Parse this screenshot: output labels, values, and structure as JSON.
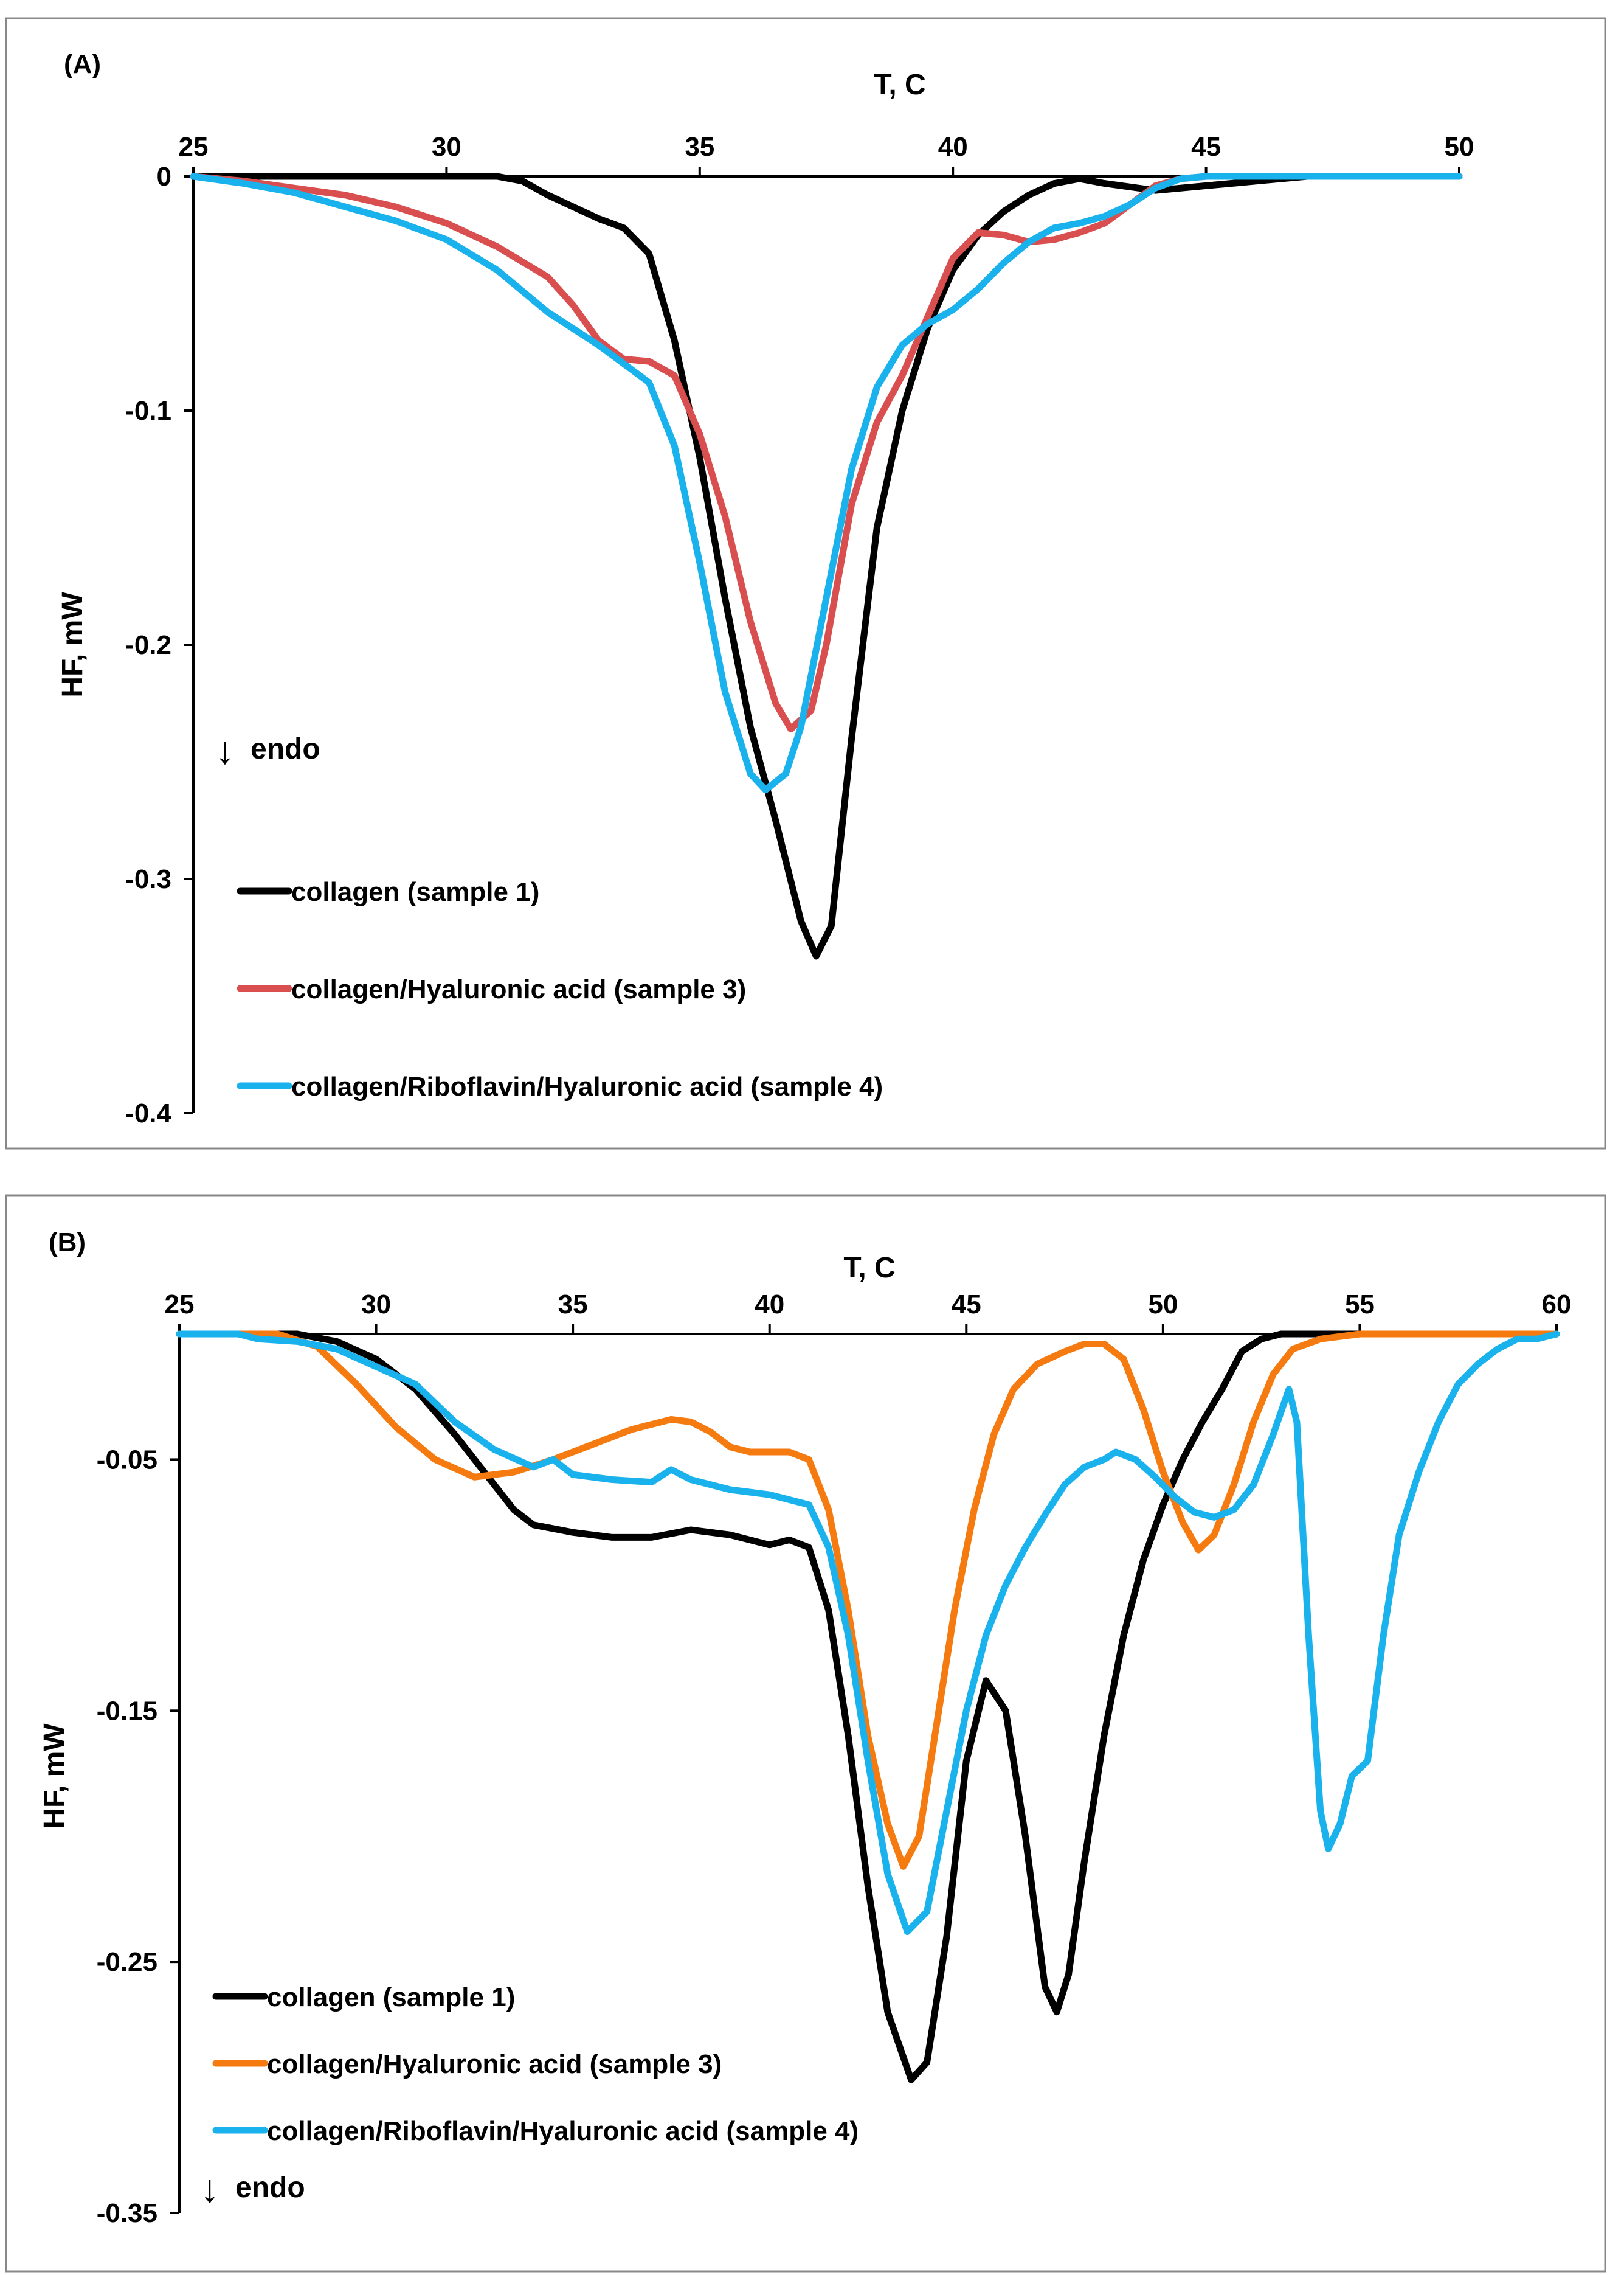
{
  "chart_data": [
    {
      "type": "line",
      "panel_label": "(A)",
      "xlabel": "T, C",
      "ylabel": "HF, mW",
      "xlim": [
        25,
        50
      ],
      "ylim": [
        -0.4,
        0
      ],
      "xticks": [
        25,
        30,
        35,
        40,
        45,
        50
      ],
      "xtick_labels": [
        "25",
        "30",
        "35",
        "40",
        "45",
        "50"
      ],
      "yticks": [
        0,
        -0.1,
        -0.2,
        -0.3,
        -0.4
      ],
      "ytick_labels": [
        "0",
        "-0.1",
        "-0.2",
        "-0.3",
        "-0.4"
      ],
      "x_axis_position": "top",
      "annotation": "endo",
      "annotation_arrow": "↓",
      "legend_position": "bottom-left",
      "series": [
        {
          "name": "collagen (sample 1)",
          "color": "#000000",
          "points": [
            [
              25,
              0
            ],
            [
              30,
              0
            ],
            [
              31,
              0
            ],
            [
              31.5,
              -0.002
            ],
            [
              32,
              -0.008
            ],
            [
              33,
              -0.018
            ],
            [
              33.5,
              -0.022
            ],
            [
              34,
              -0.033
            ],
            [
              34.5,
              -0.07
            ],
            [
              35,
              -0.12
            ],
            [
              35.5,
              -0.18
            ],
            [
              36,
              -0.235
            ],
            [
              36.5,
              -0.275
            ],
            [
              37,
              -0.318
            ],
            [
              37.3,
              -0.333
            ],
            [
              37.6,
              -0.32
            ],
            [
              38,
              -0.24
            ],
            [
              38.5,
              -0.15
            ],
            [
              39,
              -0.1
            ],
            [
              39.5,
              -0.065
            ],
            [
              40,
              -0.04
            ],
            [
              40.5,
              -0.025
            ],
            [
              41,
              -0.015
            ],
            [
              41.5,
              -0.008
            ],
            [
              42,
              -0.003
            ],
            [
              42.5,
              -0.001
            ],
            [
              43,
              -0.003
            ],
            [
              44,
              -0.006
            ],
            [
              45,
              -0.004
            ],
            [
              46,
              -0.002
            ],
            [
              47,
              0
            ],
            [
              50,
              0
            ]
          ]
        },
        {
          "name": "collagen/Hyaluronic acid (sample 3)",
          "color": "#d94f4f",
          "points": [
            [
              25,
              0
            ],
            [
              26,
              -0.002
            ],
            [
              27,
              -0.005
            ],
            [
              28,
              -0.008
            ],
            [
              29,
              -0.013
            ],
            [
              30,
              -0.02
            ],
            [
              31,
              -0.03
            ],
            [
              32,
              -0.043
            ],
            [
              32.5,
              -0.055
            ],
            [
              33,
              -0.07
            ],
            [
              33.5,
              -0.078
            ],
            [
              34,
              -0.079
            ],
            [
              34.5,
              -0.085
            ],
            [
              35,
              -0.11
            ],
            [
              35.5,
              -0.145
            ],
            [
              36,
              -0.19
            ],
            [
              36.5,
              -0.225
            ],
            [
              36.8,
              -0.236
            ],
            [
              37.2,
              -0.228
            ],
            [
              37.5,
              -0.2
            ],
            [
              38,
              -0.14
            ],
            [
              38.5,
              -0.105
            ],
            [
              39,
              -0.085
            ],
            [
              39.5,
              -0.06
            ],
            [
              40,
              -0.035
            ],
            [
              40.5,
              -0.024
            ],
            [
              41,
              -0.025
            ],
            [
              41.5,
              -0.028
            ],
            [
              42,
              -0.027
            ],
            [
              42.5,
              -0.024
            ],
            [
              43,
              -0.02
            ],
            [
              43.5,
              -0.012
            ],
            [
              44,
              -0.004
            ],
            [
              44.5,
              -0.001
            ],
            [
              45,
              0
            ],
            [
              50,
              0
            ]
          ]
        },
        {
          "name": "collagen/Riboflavin/Hyaluronic acid (sample 4)",
          "color": "#1ab2ec",
          "points": [
            [
              25,
              0
            ],
            [
              26,
              -0.003
            ],
            [
              27,
              -0.007
            ],
            [
              28,
              -0.013
            ],
            [
              29,
              -0.019
            ],
            [
              30,
              -0.027
            ],
            [
              31,
              -0.04
            ],
            [
              32,
              -0.058
            ],
            [
              33,
              -0.072
            ],
            [
              34,
              -0.088
            ],
            [
              34.5,
              -0.115
            ],
            [
              35,
              -0.165
            ],
            [
              35.5,
              -0.22
            ],
            [
              36,
              -0.255
            ],
            [
              36.3,
              -0.262
            ],
            [
              36.7,
              -0.255
            ],
            [
              37,
              -0.235
            ],
            [
              37.5,
              -0.18
            ],
            [
              38,
              -0.125
            ],
            [
              38.5,
              -0.09
            ],
            [
              39,
              -0.072
            ],
            [
              39.5,
              -0.063
            ],
            [
              40,
              -0.057
            ],
            [
              40.5,
              -0.048
            ],
            [
              41,
              -0.037
            ],
            [
              41.5,
              -0.028
            ],
            [
              42,
              -0.022
            ],
            [
              42.5,
              -0.02
            ],
            [
              43,
              -0.017
            ],
            [
              43.5,
              -0.012
            ],
            [
              44,
              -0.005
            ],
            [
              44.5,
              -0.001
            ],
            [
              45,
              0
            ],
            [
              50,
              0
            ]
          ]
        }
      ]
    },
    {
      "type": "line",
      "panel_label": "(B)",
      "xlabel": "T, C",
      "ylabel": "HF, mW",
      "xlim": [
        25,
        60
      ],
      "ylim": [
        -0.35,
        0
      ],
      "xticks": [
        25,
        30,
        35,
        40,
        45,
        50,
        55,
        60
      ],
      "xtick_labels": [
        "25",
        "30",
        "35",
        "40",
        "45",
        "50",
        "55",
        "60"
      ],
      "yticks": [
        -0.05,
        -0.15,
        -0.25,
        -0.35
      ],
      "ytick_labels": [
        "-0.05",
        "-0.15",
        "-0.25",
        "-0.35"
      ],
      "x_axis_position": "top",
      "annotation": "endo",
      "annotation_arrow": "↓",
      "legend_position": "bottom-left",
      "series": [
        {
          "name": "collagen (sample 1)",
          "color": "#000000",
          "points": [
            [
              25,
              0
            ],
            [
              28,
              0
            ],
            [
              29,
              -0.003
            ],
            [
              30,
              -0.01
            ],
            [
              31,
              -0.022
            ],
            [
              32,
              -0.04
            ],
            [
              33,
              -0.06
            ],
            [
              33.5,
              -0.07
            ],
            [
              34,
              -0.076
            ],
            [
              35,
              -0.079
            ],
            [
              36,
              -0.081
            ],
            [
              37,
              -0.081
            ],
            [
              38,
              -0.078
            ],
            [
              39,
              -0.08
            ],
            [
              40,
              -0.084
            ],
            [
              40.5,
              -0.082
            ],
            [
              41,
              -0.085
            ],
            [
              41.5,
              -0.11
            ],
            [
              42,
              -0.16
            ],
            [
              42.5,
              -0.22
            ],
            [
              43,
              -0.27
            ],
            [
              43.6,
              -0.297
            ],
            [
              44,
              -0.29
            ],
            [
              44.5,
              -0.24
            ],
            [
              45,
              -0.17
            ],
            [
              45.5,
              -0.138
            ],
            [
              46,
              -0.15
            ],
            [
              46.5,
              -0.2
            ],
            [
              47,
              -0.26
            ],
            [
              47.3,
              -0.27
            ],
            [
              47.6,
              -0.255
            ],
            [
              48,
              -0.21
            ],
            [
              48.5,
              -0.16
            ],
            [
              49,
              -0.12
            ],
            [
              49.5,
              -0.09
            ],
            [
              50,
              -0.068
            ],
            [
              50.5,
              -0.05
            ],
            [
              51,
              -0.035
            ],
            [
              51.5,
              -0.022
            ],
            [
              52,
              -0.007
            ],
            [
              52.5,
              -0.002
            ],
            [
              53,
              0
            ],
            [
              60,
              0
            ]
          ]
        },
        {
          "name": "collagen/Hyaluronic acid (sample 3)",
          "color": "#f57a0f",
          "points": [
            [
              25,
              0
            ],
            [
              27.5,
              0
            ],
            [
              28.5,
              -0.005
            ],
            [
              29.5,
              -0.02
            ],
            [
              30.5,
              -0.037
            ],
            [
              31.5,
              -0.05
            ],
            [
              32.5,
              -0.057
            ],
            [
              33.5,
              -0.055
            ],
            [
              34.5,
              -0.05
            ],
            [
              35.5,
              -0.044
            ],
            [
              36.5,
              -0.038
            ],
            [
              37.5,
              -0.034
            ],
            [
              38,
              -0.035
            ],
            [
              38.5,
              -0.039
            ],
            [
              39,
              -0.045
            ],
            [
              39.5,
              -0.047
            ],
            [
              40.5,
              -0.047
            ],
            [
              41,
              -0.05
            ],
            [
              41.5,
              -0.07
            ],
            [
              42,
              -0.11
            ],
            [
              42.5,
              -0.16
            ],
            [
              43,
              -0.195
            ],
            [
              43.4,
              -0.212
            ],
            [
              43.8,
              -0.2
            ],
            [
              44.2,
              -0.16
            ],
            [
              44.7,
              -0.11
            ],
            [
              45.2,
              -0.07
            ],
            [
              45.7,
              -0.04
            ],
            [
              46.2,
              -0.022
            ],
            [
              46.8,
              -0.012
            ],
            [
              47.5,
              -0.007
            ],
            [
              48,
              -0.004
            ],
            [
              48.5,
              -0.004
            ],
            [
              49,
              -0.01
            ],
            [
              49.5,
              -0.03
            ],
            [
              50,
              -0.055
            ],
            [
              50.5,
              -0.075
            ],
            [
              50.9,
              -0.086
            ],
            [
              51.3,
              -0.08
            ],
            [
              51.8,
              -0.06
            ],
            [
              52.3,
              -0.035
            ],
            [
              52.8,
              -0.016
            ],
            [
              53.3,
              -0.006
            ],
            [
              54,
              -0.002
            ],
            [
              55,
              0
            ],
            [
              60,
              0
            ]
          ]
        },
        {
          "name": "collagen/Riboflavin/Hyaluronic acid (sample 4)",
          "color": "#1ab2ec",
          "points": [
            [
              25,
              0
            ],
            [
              26.5,
              0
            ],
            [
              27,
              -0.002
            ],
            [
              28,
              -0.003
            ],
            [
              29,
              -0.006
            ],
            [
              30,
              -0.013
            ],
            [
              31,
              -0.02
            ],
            [
              32,
              -0.035
            ],
            [
              33,
              -0.046
            ],
            [
              34,
              -0.053
            ],
            [
              34.5,
              -0.05
            ],
            [
              35,
              -0.056
            ],
            [
              36,
              -0.058
            ],
            [
              37,
              -0.059
            ],
            [
              37.5,
              -0.054
            ],
            [
              38,
              -0.058
            ],
            [
              39,
              -0.062
            ],
            [
              40,
              -0.064
            ],
            [
              41,
              -0.068
            ],
            [
              41.5,
              -0.085
            ],
            [
              42,
              -0.12
            ],
            [
              42.5,
              -0.17
            ],
            [
              43,
              -0.215
            ],
            [
              43.5,
              -0.238
            ],
            [
              44,
              -0.23
            ],
            [
              44.5,
              -0.19
            ],
            [
              45,
              -0.15
            ],
            [
              45.5,
              -0.12
            ],
            [
              46,
              -0.1
            ],
            [
              46.5,
              -0.085
            ],
            [
              47,
              -0.072
            ],
            [
              47.5,
              -0.06
            ],
            [
              48,
              -0.053
            ],
            [
              48.5,
              -0.05
            ],
            [
              48.8,
              -0.047
            ],
            [
              49.3,
              -0.05
            ],
            [
              49.8,
              -0.057
            ],
            [
              50.3,
              -0.065
            ],
            [
              50.8,
              -0.071
            ],
            [
              51.3,
              -0.073
            ],
            [
              51.8,
              -0.07
            ],
            [
              52.3,
              -0.06
            ],
            [
              52.8,
              -0.04
            ],
            [
              53.2,
              -0.022
            ],
            [
              53.4,
              -0.035
            ],
            [
              53.7,
              -0.12
            ],
            [
              54,
              -0.19
            ],
            [
              54.2,
              -0.205
            ],
            [
              54.5,
              -0.195
            ],
            [
              54.8,
              -0.176
            ],
            [
              55.2,
              -0.17
            ],
            [
              55.6,
              -0.12
            ],
            [
              56,
              -0.08
            ],
            [
              56.5,
              -0.055
            ],
            [
              57,
              -0.035
            ],
            [
              57.5,
              -0.02
            ],
            [
              58,
              -0.012
            ],
            [
              58.5,
              -0.006
            ],
            [
              59,
              -0.002
            ],
            [
              59.5,
              -0.002
            ],
            [
              60,
              0
            ]
          ]
        }
      ]
    }
  ]
}
